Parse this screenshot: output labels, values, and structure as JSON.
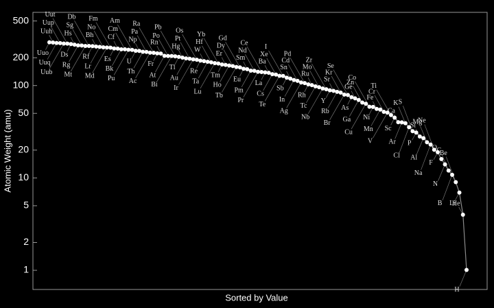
{
  "chart_data": {
    "type": "line",
    "y_label": "Atomic Weight (amu)",
    "x_label": "Sorted by Value",
    "yscale": "log",
    "ylim": [
      0.62,
      620
    ],
    "yticks": [
      1,
      2,
      5,
      10,
      20,
      50,
      100,
      200,
      500
    ],
    "line_color": "#8c8c8c",
    "point_color": "#ffffff",
    "categories": [
      "Uuo",
      "Uuh",
      "Uuq",
      "Uup",
      "Uub",
      "Uut",
      "Ds",
      "Hs",
      "Rg",
      "Sg",
      "Mt",
      "Db",
      "Rf",
      "Bh",
      "Lr",
      "No",
      "Md",
      "Fm",
      "Es",
      "Cf",
      "Bk",
      "Cm",
      "Pu",
      "Am",
      "U",
      "Np",
      "Th",
      "Pa",
      "Ac",
      "Ra",
      "Fr",
      "Rn",
      "At",
      "Po",
      "Bi",
      "Pb",
      "Tl",
      "Hg",
      "Au",
      "Pt",
      "Ir",
      "Os",
      "Re",
      "W",
      "Ta",
      "Hf",
      "Lu",
      "Yb",
      "Tm",
      "Er",
      "Ho",
      "Dy",
      "Tb",
      "Gd",
      "Eu",
      "Sm",
      "Pm",
      "Nd",
      "Pr",
      "Ce",
      "La",
      "Ba",
      "Cs",
      "Xe",
      "Te",
      "I",
      "Sb",
      "Sn",
      "In",
      "Cd",
      "Ag",
      "Pd",
      "Rh",
      "Ru",
      "Tc",
      "Mo",
      "Nb",
      "Zr",
      "Y",
      "Sr",
      "Rb",
      "Kr",
      "Br",
      "Se",
      "As",
      "Ge",
      "Ga",
      "Zn",
      "Cu",
      "Co",
      "Ni",
      "Fe",
      "Mn",
      "Cr",
      "V",
      "Ti",
      "Sc",
      "Ca",
      "Ar",
      "K",
      "Cl",
      "S",
      "P",
      "Si",
      "Al",
      "Mg",
      "Na",
      "Ne",
      "F",
      "O",
      "N",
      "C",
      "B",
      "Be",
      "Li",
      "He",
      "H"
    ],
    "values": [
      294,
      292,
      289,
      288,
      285,
      284,
      281,
      277,
      272,
      271,
      268,
      268,
      267,
      264,
      262,
      259,
      258,
      257,
      252,
      251,
      247,
      247,
      244,
      243,
      238.03,
      237,
      232.04,
      231.04,
      227,
      226,
      223,
      222,
      210,
      209,
      208.98,
      207.2,
      204.38,
      200.59,
      196.97,
      195.08,
      192.22,
      190.23,
      186.21,
      183.84,
      180.95,
      178.49,
      174.97,
      173.04,
      168.93,
      167.26,
      164.93,
      162.5,
      158.93,
      157.25,
      151.96,
      150.36,
      145,
      144.24,
      140.91,
      140.12,
      138.91,
      137.33,
      132.91,
      131.29,
      127.6,
      126.9,
      121.76,
      118.71,
      114.82,
      112.41,
      107.87,
      106.42,
      102.91,
      101.07,
      98,
      95.96,
      92.91,
      91.22,
      88.91,
      87.62,
      85.47,
      83.8,
      79.9,
      78.96,
      74.92,
      72.64,
      69.72,
      65.41,
      63.55,
      58.93,
      58.69,
      55.85,
      54.94,
      52,
      50.94,
      47.87,
      44.96,
      40.08,
      39.95,
      39.1,
      35.45,
      32.07,
      30.97,
      28.09,
      26.98,
      24.31,
      22.99,
      20.18,
      19,
      16,
      14.01,
      12.01,
      10.81,
      9.01,
      6.94,
      4.0,
      1.01
    ]
  }
}
